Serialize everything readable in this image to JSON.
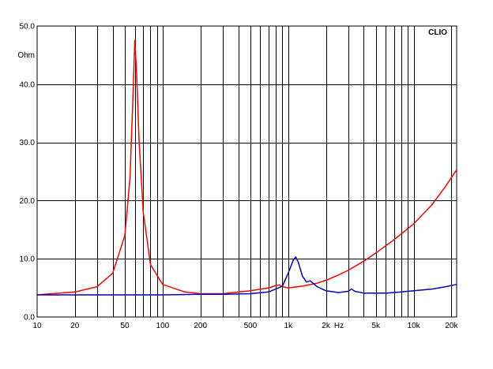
{
  "chart_data": {
    "type": "line",
    "title": "",
    "brand": "CLIO",
    "xscale": "log",
    "xlim": [
      10,
      22000
    ],
    "ylim": [
      0,
      50
    ],
    "grid": true,
    "y_unit": "Ohm",
    "x_unit": "Hz",
    "y_ticks": [
      "50.0",
      "40.0",
      "30.0",
      "20.0",
      "10.0",
      "0.0"
    ],
    "x_ticks": [
      {
        "v": 10,
        "label": "10"
      },
      {
        "v": 20,
        "label": "20"
      },
      {
        "v": 50,
        "label": "50"
      },
      {
        "v": 100,
        "label": "100"
      },
      {
        "v": 200,
        "label": "200"
      },
      {
        "v": 500,
        "label": "500"
      },
      {
        "v": 1000,
        "label": "1k"
      },
      {
        "v": 2000,
        "label": "2k"
      },
      {
        "v": 5000,
        "label": "5k"
      },
      {
        "v": 10000,
        "label": "10k"
      },
      {
        "v": 20000,
        "label": "20k"
      }
    ],
    "series": [
      {
        "color": "#ff0000",
        "points": [
          [
            10,
            3.8
          ],
          [
            20,
            4.3
          ],
          [
            30,
            5.2
          ],
          [
            40,
            7.5
          ],
          [
            50,
            14.0
          ],
          [
            55,
            24.0
          ],
          [
            58,
            38.0
          ],
          [
            60,
            47.5
          ],
          [
            62,
            42.0
          ],
          [
            65,
            30.0
          ],
          [
            70,
            18.0
          ],
          [
            80,
            9.0
          ],
          [
            100,
            5.6
          ],
          [
            150,
            4.3
          ],
          [
            200,
            4.0
          ],
          [
            300,
            4.0
          ],
          [
            500,
            4.5
          ],
          [
            700,
            5.0
          ],
          [
            800,
            5.4
          ],
          [
            850,
            5.5
          ],
          [
            900,
            5.2
          ],
          [
            1000,
            5.0
          ],
          [
            1300,
            5.3
          ],
          [
            1700,
            5.8
          ],
          [
            2000,
            6.3
          ],
          [
            2500,
            7.2
          ],
          [
            3000,
            8.0
          ],
          [
            4000,
            9.6
          ],
          [
            5000,
            11.0
          ],
          [
            7000,
            13.3
          ],
          [
            10000,
            16.0
          ],
          [
            14000,
            19.3
          ],
          [
            18000,
            22.5
          ],
          [
            22000,
            25.3
          ]
        ]
      },
      {
        "color": "#0000c8",
        "points": [
          [
            10,
            3.8
          ],
          [
            50,
            3.8
          ],
          [
            100,
            3.8
          ],
          [
            200,
            3.9
          ],
          [
            300,
            3.9
          ],
          [
            500,
            4.0
          ],
          [
            700,
            4.3
          ],
          [
            900,
            5.3
          ],
          [
            1000,
            7.5
          ],
          [
            1100,
            9.8
          ],
          [
            1150,
            10.3
          ],
          [
            1200,
            9.5
          ],
          [
            1300,
            7.0
          ],
          [
            1400,
            6.0
          ],
          [
            1500,
            6.2
          ],
          [
            1700,
            5.2
          ],
          [
            2000,
            4.5
          ],
          [
            2500,
            4.2
          ],
          [
            3000,
            4.4
          ],
          [
            3200,
            4.8
          ],
          [
            3400,
            4.4
          ],
          [
            4000,
            4.1
          ],
          [
            6000,
            4.1
          ],
          [
            8000,
            4.3
          ],
          [
            10000,
            4.5
          ],
          [
            14000,
            4.8
          ],
          [
            18000,
            5.2
          ],
          [
            22000,
            5.6
          ]
        ]
      }
    ]
  }
}
